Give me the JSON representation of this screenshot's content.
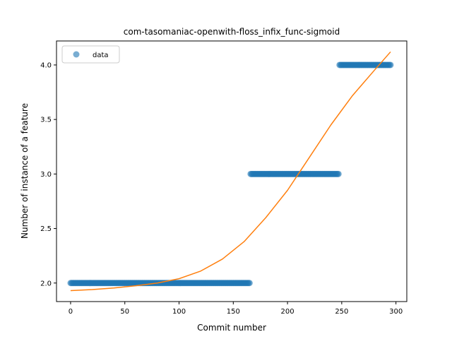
{
  "chart_data": {
    "type": "scatter",
    "title": "com-tasomaniac-openwith-floss_infix_func-sigmoid",
    "xlabel": "Commit number",
    "ylabel": "Number of instance of a feature",
    "xlim": [
      -13,
      310
    ],
    "ylim": [
      1.83,
      4.22
    ],
    "xticks": [
      0,
      50,
      100,
      150,
      200,
      250,
      300
    ],
    "yticks": [
      2.0,
      2.5,
      3.0,
      3.5,
      4.0
    ],
    "ytick_labels": [
      "2.0",
      "2.5",
      "3.0",
      "3.5",
      "4.0"
    ],
    "grid": false,
    "legend": {
      "position": "top-left",
      "entries": [
        "data"
      ]
    },
    "colors": {
      "data": "#1f77b4",
      "fit": "#ff7f0e"
    },
    "series": [
      {
        "name": "data",
        "kind": "scatter",
        "segments": [
          {
            "x_start": 0,
            "x_end": 165,
            "y": 2.0
          },
          {
            "x_start": 166,
            "x_end": 247,
            "y": 3.0
          },
          {
            "x_start": 248,
            "x_end": 295,
            "y": 4.0
          }
        ]
      },
      {
        "kind": "line",
        "x": [
          0,
          20,
          40,
          60,
          80,
          100,
          120,
          140,
          160,
          180,
          200,
          220,
          240,
          260,
          280,
          295
        ],
        "y": [
          1.93,
          1.94,
          1.955,
          1.975,
          2.0,
          2.04,
          2.11,
          2.22,
          2.38,
          2.6,
          2.85,
          3.15,
          3.45,
          3.72,
          3.95,
          4.12
        ]
      }
    ]
  }
}
